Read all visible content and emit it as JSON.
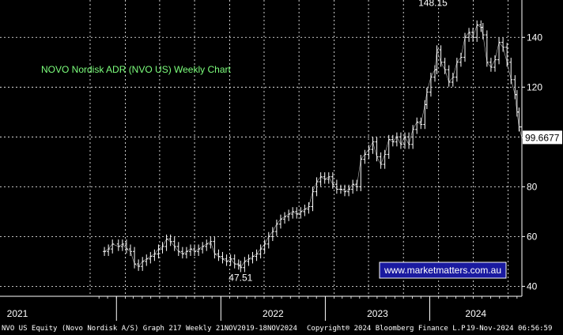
{
  "chart_data": {
    "type": "line",
    "title": "NOVO Nordisk ADR (NVO US) Weekly Chart",
    "y_ticks": [
      40,
      60,
      80,
      120,
      140
    ],
    "ylim": [
      36,
      155
    ],
    "x_range": [
      "2019-11-21",
      "2024-11-18"
    ],
    "x_labels": [
      {
        "label": "2021",
        "date": "2021-01-01"
      },
      {
        "label": "2022",
        "date": "2022-01-01"
      },
      {
        "label": "2023",
        "date": "2023-01-01"
      },
      {
        "label": "2024",
        "date": "2024-01-01"
      }
    ],
    "last_price": {
      "value": 99.6677,
      "label": "99.6677"
    },
    "annotations": [
      {
        "text": "148.15",
        "date": "2024-01-12",
        "value": 148.15
      },
      {
        "text": "47.51",
        "date": "2022-03-11",
        "value": 47.51
      }
    ],
    "series": [
      {
        "points": [
          {
            "date": "2020-11-20",
            "value": 54
          },
          {
            "date": "2020-12-04",
            "value": 55
          },
          {
            "date": "2020-12-18",
            "value": 57
          },
          {
            "date": "2021-01-08",
            "value": 56
          },
          {
            "date": "2021-01-22",
            "value": 57
          },
          {
            "date": "2021-02-05",
            "value": 55
          },
          {
            "date": "2021-02-19",
            "value": 54
          },
          {
            "date": "2021-03-05",
            "value": 49
          },
          {
            "date": "2021-03-19",
            "value": 48
          },
          {
            "date": "2021-04-02",
            "value": 50
          },
          {
            "date": "2021-04-16",
            "value": 51
          },
          {
            "date": "2021-04-30",
            "value": 52
          },
          {
            "date": "2021-05-14",
            "value": 53
          },
          {
            "date": "2021-05-28",
            "value": 55
          },
          {
            "date": "2021-06-11",
            "value": 56
          },
          {
            "date": "2021-06-25",
            "value": 59
          },
          {
            "date": "2021-07-09",
            "value": 58
          },
          {
            "date": "2021-07-23",
            "value": 56
          },
          {
            "date": "2021-08-06",
            "value": 54
          },
          {
            "date": "2021-08-20",
            "value": 53
          },
          {
            "date": "2021-09-03",
            "value": 54
          },
          {
            "date": "2021-09-17",
            "value": 55
          },
          {
            "date": "2021-10-01",
            "value": 54
          },
          {
            "date": "2021-10-15",
            "value": 55
          },
          {
            "date": "2021-10-29",
            "value": 56
          },
          {
            "date": "2021-11-12",
            "value": 57
          },
          {
            "date": "2021-11-26",
            "value": 58
          },
          {
            "date": "2021-12-10",
            "value": 53
          },
          {
            "date": "2021-12-24",
            "value": 52
          },
          {
            "date": "2022-01-07",
            "value": 51
          },
          {
            "date": "2022-01-21",
            "value": 50
          },
          {
            "date": "2022-02-04",
            "value": 51
          },
          {
            "date": "2022-02-18",
            "value": 49
          },
          {
            "date": "2022-03-04",
            "value": 48.5
          },
          {
            "date": "2022-03-11",
            "value": 47.51
          },
          {
            "date": "2022-03-25",
            "value": 50
          },
          {
            "date": "2022-04-08",
            "value": 51
          },
          {
            "date": "2022-04-22",
            "value": 52
          },
          {
            "date": "2022-05-06",
            "value": 53
          },
          {
            "date": "2022-05-20",
            "value": 55
          },
          {
            "date": "2022-06-03",
            "value": 57
          },
          {
            "date": "2022-06-17",
            "value": 60
          },
          {
            "date": "2022-07-01",
            "value": 62
          },
          {
            "date": "2022-07-15",
            "value": 65
          },
          {
            "date": "2022-07-29",
            "value": 67
          },
          {
            "date": "2022-08-12",
            "value": 68
          },
          {
            "date": "2022-08-26",
            "value": 69
          },
          {
            "date": "2022-09-09",
            "value": 70
          },
          {
            "date": "2022-09-23",
            "value": 69
          },
          {
            "date": "2022-10-07",
            "value": 70
          },
          {
            "date": "2022-10-21",
            "value": 71
          },
          {
            "date": "2022-11-04",
            "value": 72
          },
          {
            "date": "2022-11-18",
            "value": 78
          },
          {
            "date": "2022-12-02",
            "value": 82
          },
          {
            "date": "2022-12-16",
            "value": 84
          },
          {
            "date": "2022-12-30",
            "value": 83
          },
          {
            "date": "2023-01-13",
            "value": 84
          },
          {
            "date": "2023-01-27",
            "value": 81
          },
          {
            "date": "2023-02-10",
            "value": 79
          },
          {
            "date": "2023-02-24",
            "value": 79
          },
          {
            "date": "2023-03-10",
            "value": 78
          },
          {
            "date": "2023-03-24",
            "value": 79
          },
          {
            "date": "2023-04-07",
            "value": 81
          },
          {
            "date": "2023-04-21",
            "value": 80
          },
          {
            "date": "2023-05-05",
            "value": 91
          },
          {
            "date": "2023-05-19",
            "value": 93
          },
          {
            "date": "2023-06-02",
            "value": 95
          },
          {
            "date": "2023-06-16",
            "value": 98
          },
          {
            "date": "2023-06-30",
            "value": 92
          },
          {
            "date": "2023-07-14",
            "value": 89
          },
          {
            "date": "2023-07-28",
            "value": 93
          },
          {
            "date": "2023-08-11",
            "value": 99
          },
          {
            "date": "2023-08-25",
            "value": 98
          },
          {
            "date": "2023-09-08",
            "value": 100
          },
          {
            "date": "2023-09-22",
            "value": 97
          },
          {
            "date": "2023-10-06",
            "value": 100
          },
          {
            "date": "2023-10-20",
            "value": 97
          },
          {
            "date": "2023-11-03",
            "value": 103
          },
          {
            "date": "2023-11-17",
            "value": 106
          },
          {
            "date": "2023-12-01",
            "value": 105
          },
          {
            "date": "2023-12-15",
            "value": 113
          },
          {
            "date": "2023-12-22",
            "value": 118
          },
          {
            "date": "2024-01-05",
            "value": 124
          },
          {
            "date": "2024-01-19",
            "value": 127
          },
          {
            "date": "2024-01-26",
            "value": 135
          },
          {
            "date": "2024-02-09",
            "value": 130
          },
          {
            "date": "2024-02-23",
            "value": 127
          },
          {
            "date": "2024-03-08",
            "value": 122
          },
          {
            "date": "2024-03-22",
            "value": 124
          },
          {
            "date": "2024-04-05",
            "value": 130
          },
          {
            "date": "2024-04-19",
            "value": 132
          },
          {
            "date": "2024-05-03",
            "value": 140
          },
          {
            "date": "2024-05-17",
            "value": 142
          },
          {
            "date": "2024-05-31",
            "value": 140
          },
          {
            "date": "2024-06-14",
            "value": 145
          },
          {
            "date": "2024-06-28",
            "value": 144
          },
          {
            "date": "2024-07-05",
            "value": 141
          },
          {
            "date": "2024-07-19",
            "value": 130
          },
          {
            "date": "2024-08-02",
            "value": 128
          },
          {
            "date": "2024-08-16",
            "value": 131
          },
          {
            "date": "2024-08-30",
            "value": 138
          },
          {
            "date": "2024-09-13",
            "value": 136
          },
          {
            "date": "2024-09-27",
            "value": 130
          },
          {
            "date": "2024-10-11",
            "value": 123
          },
          {
            "date": "2024-10-25",
            "value": 117
          },
          {
            "date": "2024-11-01",
            "value": 110
          },
          {
            "date": "2024-11-08",
            "value": 104
          },
          {
            "date": "2024-11-18",
            "value": 99.6677
          }
        ]
      }
    ]
  },
  "watermark": "www.marketmatters.com.au",
  "footer": {
    "left": "NVO US Equity (Novo Nordisk A/S) Graph 217  Weekly 21NOV2019-18NOV2024",
    "center": "Copyright® 2024 Bloomberg Finance L.P.",
    "right": "19-Nov-2024 06:56:59"
  },
  "colors": {
    "background": "#000000",
    "grid": "#ffffff",
    "price": "#ffffff",
    "title": "#7cff7c",
    "watermark_bg": "#1a1aa0",
    "label_bg": "#ffffff",
    "label_text": "#000000"
  }
}
